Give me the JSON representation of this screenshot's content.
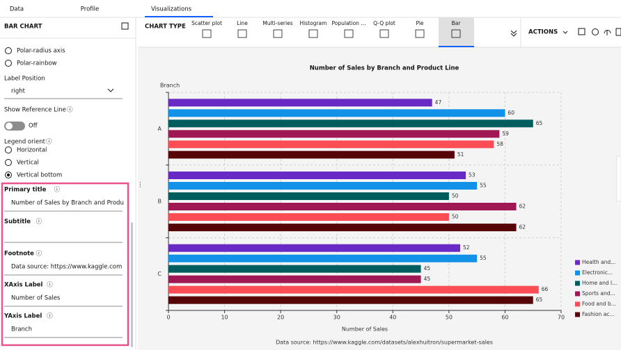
{
  "tabs": [
    "Data",
    "Profile",
    "Visualizations"
  ],
  "left_panel": {
    "title": "BAR CHART",
    "radio_options_top": [
      "Polar-radius axis",
      "Polar-rainbow"
    ],
    "label_position": {
      "label": "Label Position",
      "value": "right"
    },
    "reference_line": {
      "label": "Show Reference Line",
      "state": "Off"
    },
    "legend_orient": {
      "label": "Legend orient",
      "options": [
        "Horizontal",
        "Vertical",
        "Vertical bottom"
      ]
    },
    "fields": [
      {
        "label": "Primary title",
        "value": "Number of Sales by Branch and Produ"
      },
      {
        "label": "Subtitle"
      },
      {
        "label": "Footnote",
        "value": "Data source: https://www.kaggle.com"
      },
      {
        "label": "XAxis Label",
        "value": "Number of Sales"
      },
      {
        "label": "YAxis Label",
        "value": "Branch"
      }
    ]
  },
  "toolbar": {
    "label": "CHART TYPE",
    "chart_types": [
      "Scatter plot",
      "Line",
      "Multi-series",
      "Histogram",
      "Population ...",
      "Q-Q plot",
      "Pie",
      "Bar"
    ],
    "actions": "ACTIONS"
  },
  "chart_data": {
    "type": "bar",
    "orientation": "horizontal",
    "title": "Number of Sales by Branch and Product Line",
    "x_label": "Number of Sales",
    "y_label": "Branch",
    "footnote": "Data source: https://www.kaggle.com/datasets/aleхhuitron/supermarket-sales",
    "categories": [
      "A",
      "B",
      "C"
    ],
    "series": [
      {
        "name": "Health and...",
        "color": "#6929c4",
        "values": [
          47,
          53,
          52
        ]
      },
      {
        "name": "Electronic...",
        "color": "#1192e8",
        "values": [
          60,
          55,
          55
        ]
      },
      {
        "name": "Home and l...",
        "color": "#005d5d",
        "values": [
          65,
          50,
          45
        ]
      },
      {
        "name": "Sports and...",
        "color": "#9f1853",
        "values": [
          59,
          62,
          45
        ]
      },
      {
        "name": "Food and b...",
        "color": "#fa4d56",
        "values": [
          58,
          50,
          66
        ]
      },
      {
        "name": "Fashion ac...",
        "color": "#570408",
        "values": [
          51,
          62,
          65
        ]
      }
    ],
    "xlim": [
      0,
      70
    ],
    "xticks": [
      0,
      10,
      20,
      30,
      40,
      50,
      60,
      70
    ],
    "grid": true,
    "legend": "right"
  }
}
